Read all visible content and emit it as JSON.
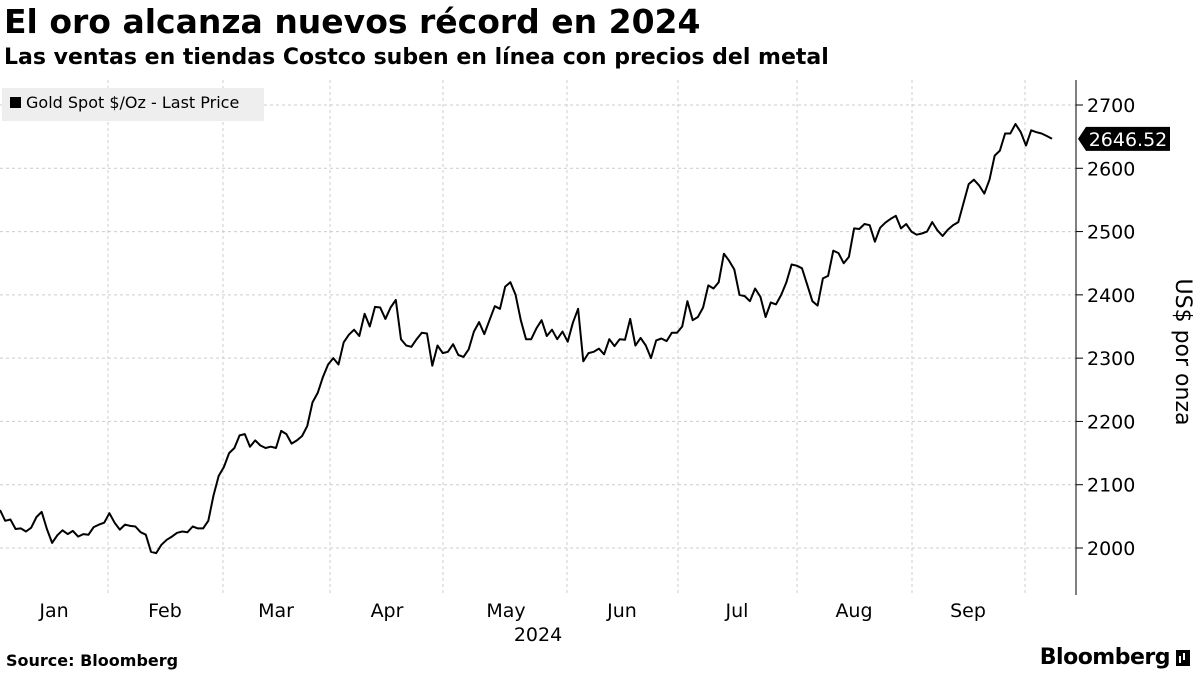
{
  "header": {
    "title": "El oro alcanza nuevos récord en 2024",
    "subtitle": "Las ventas en tiendas Costco suben en línea con precios del metal"
  },
  "footer": {
    "source": "Source:  Bloomberg",
    "brand": "Bloomberg"
  },
  "chart_data": {
    "type": "line",
    "title": "El oro alcanza nuevos récord en 2024",
    "subtitle": "Las ventas en tiendas Costco suben en línea con precios del metal",
    "xlabel": "2024",
    "ylabel": "US$ por onza",
    "ylim": [
      1935,
      2730
    ],
    "yticks": [
      2000,
      2100,
      2200,
      2300,
      2400,
      2500,
      2600,
      2700
    ],
    "xticks": [
      "Jan",
      "Feb",
      "Mar",
      "Apr",
      "May",
      "Jun",
      "Jul",
      "Aug",
      "Sep"
    ],
    "grid": true,
    "legend": "top-left",
    "last_value_label": "2646.52",
    "colors": {
      "line": "#000000",
      "grid": "#cccccc",
      "legend_bg": "#eeeeee"
    },
    "series": [
      {
        "name": "Gold Spot $/Oz - Last Price",
        "values": [
          2060,
          2043,
          2045,
          2030,
          2031,
          2026,
          2032,
          2049,
          2057,
          2030,
          2008,
          2020,
          2028,
          2022,
          2027,
          2018,
          2022,
          2021,
          2033,
          2037,
          2040,
          2055,
          2040,
          2029,
          2037,
          2035,
          2034,
          2025,
          2021,
          1994,
          1992,
          2005,
          2013,
          2018,
          2024,
          2026,
          2025,
          2034,
          2031,
          2031,
          2043,
          2083,
          2114,
          2128,
          2150,
          2158,
          2178,
          2180,
          2160,
          2170,
          2162,
          2158,
          2160,
          2158,
          2185,
          2180,
          2165,
          2170,
          2177,
          2193,
          2230,
          2245,
          2270,
          2290,
          2300,
          2290,
          2325,
          2337,
          2345,
          2335,
          2370,
          2350,
          2381,
          2380,
          2362,
          2380,
          2392,
          2330,
          2320,
          2318,
          2330,
          2340,
          2339,
          2288,
          2320,
          2308,
          2310,
          2322,
          2305,
          2302,
          2314,
          2342,
          2357,
          2338,
          2360,
          2382,
          2378,
          2413,
          2420,
          2400,
          2360,
          2330,
          2330,
          2347,
          2360,
          2335,
          2345,
          2330,
          2342,
          2326,
          2356,
          2378,
          2295,
          2308,
          2310,
          2315,
          2306,
          2330,
          2319,
          2330,
          2329,
          2362,
          2320,
          2332,
          2320,
          2300,
          2328,
          2331,
          2327,
          2340,
          2340,
          2350,
          2390,
          2360,
          2365,
          2380,
          2415,
          2410,
          2420,
          2465,
          2454,
          2440,
          2400,
          2398,
          2390,
          2410,
          2397,
          2365,
          2388,
          2385,
          2400,
          2420,
          2448,
          2446,
          2442,
          2416,
          2390,
          2383,
          2426,
          2430,
          2470,
          2466,
          2450,
          2460,
          2505,
          2504,
          2512,
          2510,
          2484,
          2506,
          2514,
          2520,
          2525,
          2505,
          2512,
          2500,
          2495,
          2497,
          2500,
          2515,
          2502,
          2493,
          2503,
          2510,
          2515,
          2545,
          2575,
          2582,
          2573,
          2560,
          2582,
          2620,
          2628,
          2655,
          2655,
          2670,
          2657,
          2636,
          2660,
          2657,
          2655,
          2651,
          2646.52
        ]
      }
    ]
  }
}
